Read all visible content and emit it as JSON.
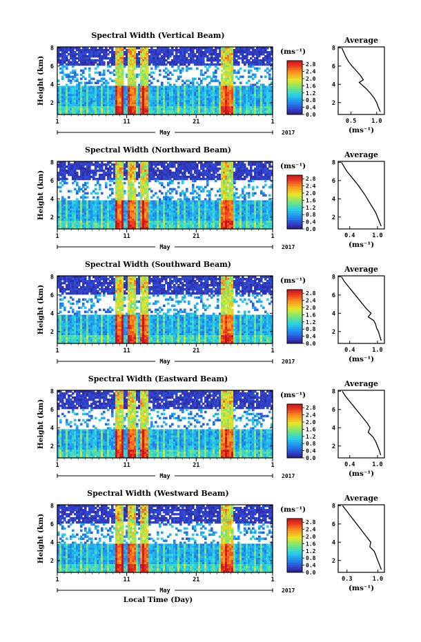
{
  "chart_data": [
    {
      "type": "heatmap",
      "title": "Spectral Width (Vertical Beam)",
      "ylabel": "Height (km)",
      "y_ticks": [
        "2",
        "4",
        "6",
        "8"
      ],
      "ylim": [
        0.7,
        8.1
      ],
      "x_ticks": [
        "1",
        "11",
        "21",
        "1"
      ],
      "month_label": "May",
      "year_label": "2017",
      "colorbar": {
        "unit": "(ms⁻¹)",
        "ticks": [
          "2.8",
          "2.4",
          "2.0",
          "1.6",
          "1.2",
          "0.8",
          "0.4",
          "0.0"
        ],
        "range": [
          0.0,
          3.0
        ]
      },
      "average_profile": {
        "title": "Average",
        "xlabel": "(ms⁻¹)",
        "x_ticks": [
          "0.5",
          "1.0"
        ],
        "xlim": [
          0.25,
          1.15
        ],
        "y_ticks": [
          "2",
          "4",
          "6",
          "8"
        ],
        "height_km": [
          8.0,
          7.5,
          7.0,
          6.5,
          6.0,
          5.5,
          5.0,
          4.5,
          4.2,
          3.9,
          3.5,
          3.0,
          2.5,
          2.0,
          1.5,
          1.0
        ],
        "width_ms": [
          0.32,
          0.36,
          0.4,
          0.45,
          0.52,
          0.6,
          0.68,
          0.74,
          0.66,
          0.72,
          0.8,
          0.88,
          0.95,
          1.0,
          1.03,
          1.07
        ]
      }
    },
    {
      "type": "heatmap",
      "title": "Spectral Width (Northward Beam)",
      "ylabel": "Height (km)",
      "y_ticks": [
        "2",
        "4",
        "6",
        "8"
      ],
      "ylim": [
        0.7,
        8.1
      ],
      "x_ticks": [
        "1",
        "11",
        "21",
        "1"
      ],
      "month_label": "May",
      "year_label": "2017",
      "colorbar": {
        "unit": "(ms⁻¹)",
        "ticks": [
          "2.8",
          "2.4",
          "2.0",
          "1.6",
          "1.2",
          "0.8",
          "0.4",
          "0.0"
        ],
        "range": [
          0.0,
          3.0
        ]
      },
      "average_profile": {
        "title": "Average",
        "xlabel": "(ms⁻¹)",
        "x_ticks": [
          "0.4",
          "1.0"
        ],
        "xlim": [
          0.15,
          1.15
        ],
        "y_ticks": [
          "2",
          "4",
          "6",
          "8"
        ],
        "height_km": [
          8.0,
          7.5,
          7.0,
          6.5,
          6.0,
          5.5,
          5.0,
          4.5,
          4.0,
          3.5,
          3.0,
          2.5,
          2.0,
          1.5,
          1.0
        ],
        "width_ms": [
          0.22,
          0.28,
          0.34,
          0.42,
          0.5,
          0.58,
          0.65,
          0.72,
          0.78,
          0.84,
          0.9,
          0.96,
          1.0,
          1.04,
          1.08
        ]
      }
    },
    {
      "type": "heatmap",
      "title": "Spectral Width (Southward Beam)",
      "ylabel": "Height (km)",
      "y_ticks": [
        "2",
        "4",
        "6",
        "8"
      ],
      "ylim": [
        0.7,
        8.1
      ],
      "x_ticks": [
        "1",
        "11",
        "21",
        "1"
      ],
      "month_label": "May",
      "year_label": "2017",
      "colorbar": {
        "unit": "(ms⁻¹)",
        "ticks": [
          "2.8",
          "2.4",
          "2.0",
          "1.6",
          "1.2",
          "0.8",
          "0.4",
          "0.0"
        ],
        "range": [
          0.0,
          3.0
        ]
      },
      "average_profile": {
        "title": "Average",
        "xlabel": "(ms⁻¹)",
        "x_ticks": [
          "0.4",
          "1.0"
        ],
        "xlim": [
          0.15,
          1.15
        ],
        "y_ticks": [
          "2",
          "4",
          "6",
          "8"
        ],
        "height_km": [
          8.0,
          7.5,
          7.0,
          6.5,
          6.0,
          5.5,
          5.0,
          4.5,
          4.0,
          3.6,
          3.2,
          2.8,
          2.4,
          2.0,
          1.5,
          1.0
        ],
        "width_ms": [
          0.22,
          0.28,
          0.36,
          0.44,
          0.52,
          0.6,
          0.68,
          0.76,
          0.86,
          0.8,
          0.92,
          0.96,
          0.98,
          1.02,
          1.05,
          1.08
        ]
      }
    },
    {
      "type": "heatmap",
      "title": "Spectral Width (Eastward Beam)",
      "ylabel": "Height (km)",
      "y_ticks": [
        "2",
        "4",
        "6",
        "8"
      ],
      "ylim": [
        0.7,
        8.1
      ],
      "x_ticks": [
        "1",
        "11",
        "21",
        "1"
      ],
      "month_label": "May",
      "year_label": "2017",
      "colorbar": {
        "unit": "(ms⁻¹)",
        "ticks": [
          "2.8",
          "2.4",
          "2.0",
          "1.6",
          "1.2",
          "0.8",
          "0.4",
          "0.0"
        ],
        "range": [
          0.0,
          3.0
        ]
      },
      "average_profile": {
        "title": "Average",
        "xlabel": "(ms⁻¹)",
        "x_ticks": [
          "0.4",
          "1.0"
        ],
        "xlim": [
          0.15,
          1.15
        ],
        "y_ticks": [
          "2",
          "4",
          "6",
          "8"
        ],
        "height_km": [
          8.0,
          7.5,
          7.0,
          6.5,
          6.0,
          5.5,
          5.0,
          4.5,
          4.0,
          3.5,
          3.0,
          2.5,
          2.0,
          1.5,
          1.0
        ],
        "width_ms": [
          0.24,
          0.3,
          0.38,
          0.46,
          0.54,
          0.62,
          0.7,
          0.78,
          0.84,
          0.8,
          0.9,
          0.96,
          1.0,
          1.04,
          1.07
        ]
      }
    },
    {
      "type": "heatmap",
      "title": "Spectral Width (Westward Beam)",
      "ylabel": "Height (km)",
      "y_ticks": [
        "2",
        "4",
        "6",
        "8"
      ],
      "ylim": [
        0.7,
        8.1
      ],
      "x_ticks": [
        "1",
        "11",
        "21",
        "1"
      ],
      "month_label": "May",
      "year_label": "2017",
      "xlabel": "Local Time (Day)",
      "colorbar": {
        "unit": "(ms⁻¹)",
        "ticks": [
          "2.8",
          "2.4",
          "2.0",
          "1.6",
          "1.2",
          "0.8",
          "0.4",
          "0.0"
        ],
        "range": [
          0.0,
          3.0
        ]
      },
      "average_profile": {
        "title": "Average",
        "xlabel": "(ms⁻¹)",
        "x_ticks": [
          "0.3",
          "1.0"
        ],
        "xlim": [
          0.1,
          1.15
        ],
        "y_ticks": [
          "2",
          "4",
          "6",
          "8"
        ],
        "height_km": [
          8.0,
          7.5,
          7.0,
          6.5,
          6.0,
          5.5,
          5.0,
          4.5,
          4.0,
          3.5,
          3.0,
          2.5,
          2.0,
          1.5,
          1.0
        ],
        "width_ms": [
          0.2,
          0.28,
          0.36,
          0.44,
          0.52,
          0.6,
          0.68,
          0.76,
          0.84,
          0.82,
          0.92,
          0.96,
          1.0,
          1.04,
          1.08
        ]
      }
    }
  ]
}
